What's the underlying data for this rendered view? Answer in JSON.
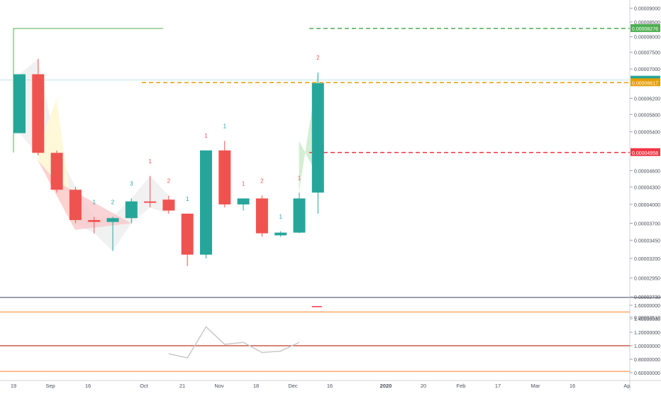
{
  "chart_data": [
    {
      "type": "candlestick",
      "title": "",
      "x_ticks": [
        "19",
        "Sep",
        "16",
        "Oct",
        "21",
        "Nov",
        "18",
        "Dec",
        "16",
        "2020",
        "20",
        "Feb",
        "17",
        "Mar",
        "16",
        "Ap"
      ],
      "y_ticks": [
        "0.00009000",
        "0.00008500",
        "0.00008000",
        "0.00007500",
        "0.00007000",
        "0.00006200",
        "0.00005800",
        "0.00005400",
        "0.00004600",
        "0.00004300",
        "0.00004000",
        "0.00003700",
        "0.00003450",
        "0.00003200",
        "0.00002950",
        "0.00002730",
        "0.00002510"
      ],
      "y_scale": "log",
      "candles": [
        {
          "open": 5.37e-05,
          "high": 6.85e-05,
          "low": 5.37e-05,
          "close": 6.85e-05
        },
        {
          "open": 6.85e-05,
          "high": 7.3e-05,
          "low": 4.9e-05,
          "close": 4.95e-05
        },
        {
          "open": 4.95e-05,
          "high": 5e-05,
          "low": 4.2e-05,
          "close": 4.25e-05
        },
        {
          "open": 4.25e-05,
          "high": 4.3e-05,
          "low": 3.7e-05,
          "close": 3.75e-05
        },
        {
          "open": 3.75e-05,
          "high": 3.8e-05,
          "low": 3.55e-05,
          "close": 3.72e-05
        },
        {
          "open": 3.72e-05,
          "high": 3.8e-05,
          "low": 3.3e-05,
          "close": 3.78e-05
        },
        {
          "open": 3.78e-05,
          "high": 4.1e-05,
          "low": 3.7e-05,
          "close": 4.05e-05
        },
        {
          "open": 4.05e-05,
          "high": 4.5e-05,
          "low": 3.95e-05,
          "close": 4.03e-05
        },
        {
          "open": 4.08e-05,
          "high": 4.15e-05,
          "low": 3.85e-05,
          "close": 3.9e-05
        },
        {
          "open": 3.85e-05,
          "high": 3.85e-05,
          "low": 3.1e-05,
          "close": 3.25e-05
        },
        {
          "open": 3.25e-05,
          "high": 5e-05,
          "low": 3.2e-05,
          "close": 5e-05
        },
        {
          "open": 5e-05,
          "high": 5.2e-05,
          "low": 3.95e-05,
          "close": 4e-05
        },
        {
          "open": 4e-05,
          "high": 4.1e-05,
          "low": 3.9e-05,
          "close": 4.1e-05
        },
        {
          "open": 4.1e-05,
          "high": 4.15e-05,
          "low": 3.5e-05,
          "close": 3.55e-05
        },
        {
          "open": 3.52e-05,
          "high": 3.58e-05,
          "low": 3.5e-05,
          "close": 3.56e-05
        },
        {
          "open": 3.56e-05,
          "high": 4.2e-05,
          "low": 3.55e-05,
          "close": 4.1e-05
        },
        {
          "open": 4.2e-05,
          "high": 6.9e-05,
          "low": 3.85e-05,
          "close": 6.6e-05
        }
      ],
      "price_lines": [
        {
          "label": "0.00008276",
          "value": 8.276e-05,
          "color": "#4caf50"
        },
        {
          "label": "0.00006617",
          "value": 6.617e-05,
          "color": "#e69d00"
        },
        {
          "label": "0.00004958",
          "value": 4.958e-05,
          "color": "#f23645"
        }
      ],
      "last_price_label": "0.00006688",
      "bar_count_labels": [
        {
          "bar": 4,
          "text": "1",
          "color": "#26a69a"
        },
        {
          "bar": 5,
          "text": "2",
          "color": "#26a69a"
        },
        {
          "bar": 6,
          "text": "3",
          "color": "#26a69a"
        },
        {
          "bar": 7,
          "text": "1",
          "color": "#ef5350"
        },
        {
          "bar": 8,
          "text": "2",
          "color": "#ef5350"
        },
        {
          "bar": 9,
          "text": "1",
          "color": "#26a69a"
        },
        {
          "bar": 10,
          "text": "1",
          "color": "#ef5350"
        },
        {
          "bar": 11,
          "text": "1",
          "color": "#26a69a"
        },
        {
          "bar": 12,
          "text": "1",
          "color": "#ef5350"
        },
        {
          "bar": 13,
          "text": "2",
          "color": "#ef5350"
        },
        {
          "bar": 14,
          "text": "1",
          "color": "#26a69a"
        },
        {
          "bar": 15,
          "text": "1",
          "color": "#ef5350"
        },
        {
          "bar": 16,
          "text": "2",
          "color": "#ef5350"
        }
      ]
    },
    {
      "type": "line",
      "y_ticks": [
        "1.60000000",
        "1.40000000",
        "1.20000000",
        "1.00000000",
        "0.80000000",
        "0.60000000"
      ],
      "ylim": [
        0.58,
        1.7
      ],
      "reference_lines": [
        {
          "value": 1.5,
          "color": "#ff9850"
        },
        {
          "value": 1.0,
          "color": "#c0392b"
        },
        {
          "value": 0.62,
          "color": "#ff9850"
        }
      ],
      "series": [
        {
          "values": [
            null,
            null,
            null,
            null,
            null,
            null,
            null,
            null,
            0.88,
            0.82,
            1.28,
            1.02,
            1.05,
            0.9,
            0.92,
            1.05,
            null
          ]
        }
      ],
      "marker": {
        "bar": 16,
        "value": 1.58,
        "color": "#f23645"
      }
    }
  ]
}
